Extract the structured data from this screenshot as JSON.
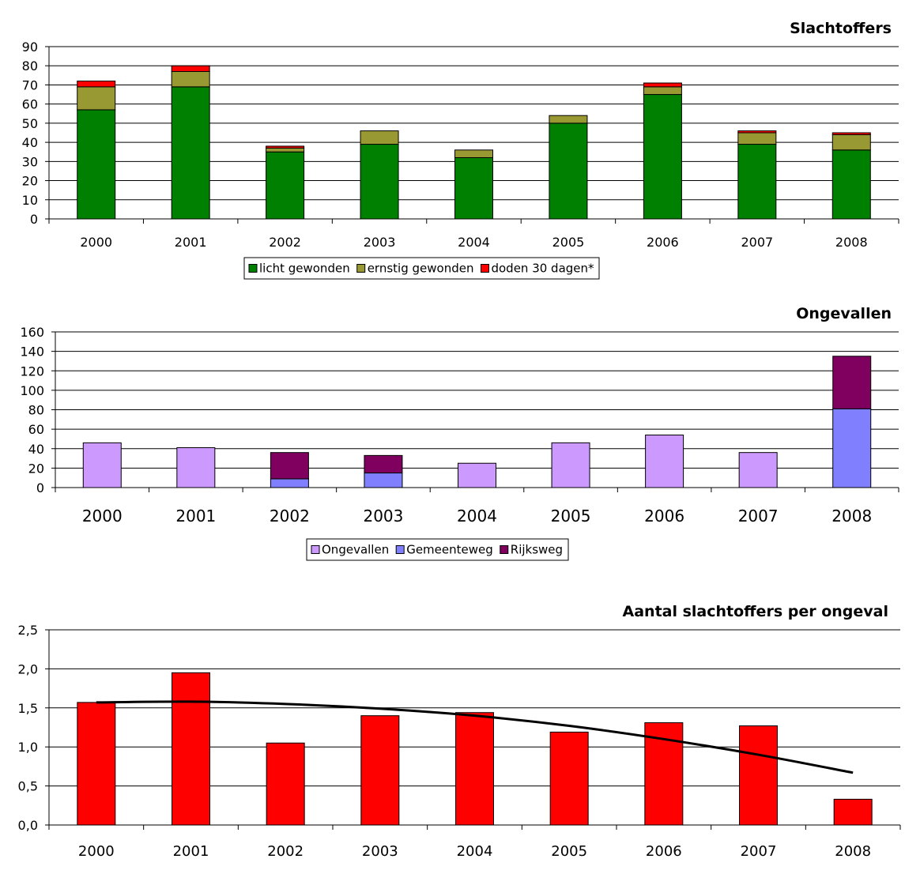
{
  "chart_data": [
    {
      "type": "bar",
      "stacked": true,
      "title": "Slachtoffers",
      "categories": [
        "2000",
        "2001",
        "2002",
        "2003",
        "2004",
        "2005",
        "2006",
        "2007",
        "2008"
      ],
      "series": [
        {
          "name": "licht gewonden",
          "color": "#008000",
          "values": [
            57,
            69,
            35,
            39,
            32,
            50,
            65,
            39,
            36
          ]
        },
        {
          "name": "ernstig gewonden",
          "color": "#999933",
          "values": [
            12,
            8,
            2,
            7,
            4,
            4,
            4,
            6,
            8
          ]
        },
        {
          "name": "doden 30 dagen*",
          "color": "#ff0000",
          "values": [
            3,
            3,
            1,
            0,
            0,
            0,
            2,
            1,
            1
          ]
        }
      ],
      "ylim": [
        0,
        90
      ],
      "yticks": [
        "0",
        "10",
        "20",
        "30",
        "40",
        "50",
        "60",
        "70",
        "80",
        "90"
      ],
      "legend": "bottom",
      "grid": true
    },
    {
      "type": "bar",
      "stacked": true,
      "title": "Ongevallen",
      "categories": [
        "2000",
        "2001",
        "2002",
        "2003",
        "2004",
        "2005",
        "2006",
        "2007",
        "2008"
      ],
      "series": [
        {
          "name": "Ongevallen",
          "color": "#cc99ff",
          "values": [
            46,
            41,
            0,
            0,
            25,
            46,
            54,
            36,
            0
          ]
        },
        {
          "name": "Gemeenteweg",
          "color": "#8080ff",
          "values": [
            0,
            0,
            9,
            15,
            0,
            0,
            0,
            0,
            81
          ]
        },
        {
          "name": "Rijksweg",
          "color": "#800060",
          "values": [
            0,
            0,
            27,
            18,
            0,
            0,
            0,
            0,
            54
          ]
        }
      ],
      "ylim": [
        0,
        160
      ],
      "yticks": [
        "0",
        "20",
        "40",
        "60",
        "80",
        "100",
        "120",
        "140",
        "160"
      ],
      "legend": "bottom",
      "grid": true
    },
    {
      "type": "bar",
      "title": "Aantal slachtoffers per ongeval",
      "categories": [
        "2000",
        "2001",
        "2002",
        "2003",
        "2004",
        "2005",
        "2006",
        "2007",
        "2008"
      ],
      "values": [
        1.57,
        1.95,
        1.05,
        1.4,
        1.44,
        1.19,
        1.31,
        1.27,
        0.33
      ],
      "color": "#ff0000",
      "trendline": {
        "type": "polynomial",
        "color": "#000000",
        "values": [
          1.57,
          1.58,
          1.55,
          1.49,
          1.4,
          1.27,
          1.1,
          0.9,
          0.67
        ]
      },
      "ylim": [
        0,
        2.5
      ],
      "yticks": [
        "0,0",
        "0,5",
        "1,0",
        "1,5",
        "2,0",
        "2,5"
      ],
      "grid": true
    }
  ]
}
